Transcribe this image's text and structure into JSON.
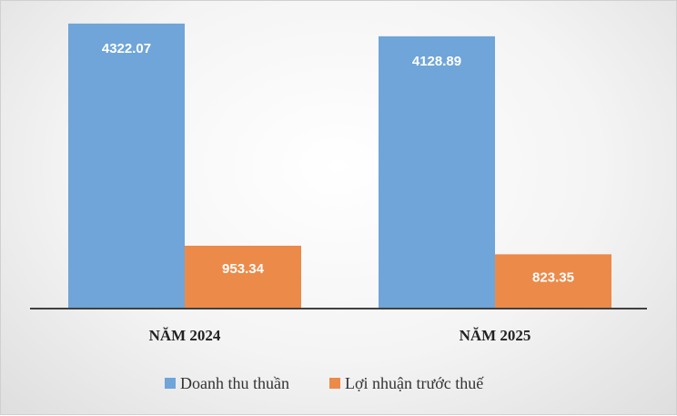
{
  "chart_data": {
    "type": "bar",
    "title": "",
    "xlabel": "",
    "ylabel": "",
    "categories": [
      "NĂM 2024",
      "NĂM 2025"
    ],
    "series": [
      {
        "name": "Doanh thu thuần",
        "values": [
          4322.07,
          4128.89
        ],
        "labels": [
          "4322.07",
          "4128.89"
        ],
        "color": "#6fa5d8"
      },
      {
        "name": "Lợi nhuận trước thuế",
        "values": [
          953.34,
          823.35
        ],
        "labels": [
          "953.34",
          "823.35"
        ],
        "color": "#ec8a4a"
      }
    ],
    "ylim": [
      0,
      4500
    ],
    "grid": false,
    "legend": "bottom"
  },
  "colors": {
    "axis": "#404040",
    "label_text": "#ffffff"
  }
}
